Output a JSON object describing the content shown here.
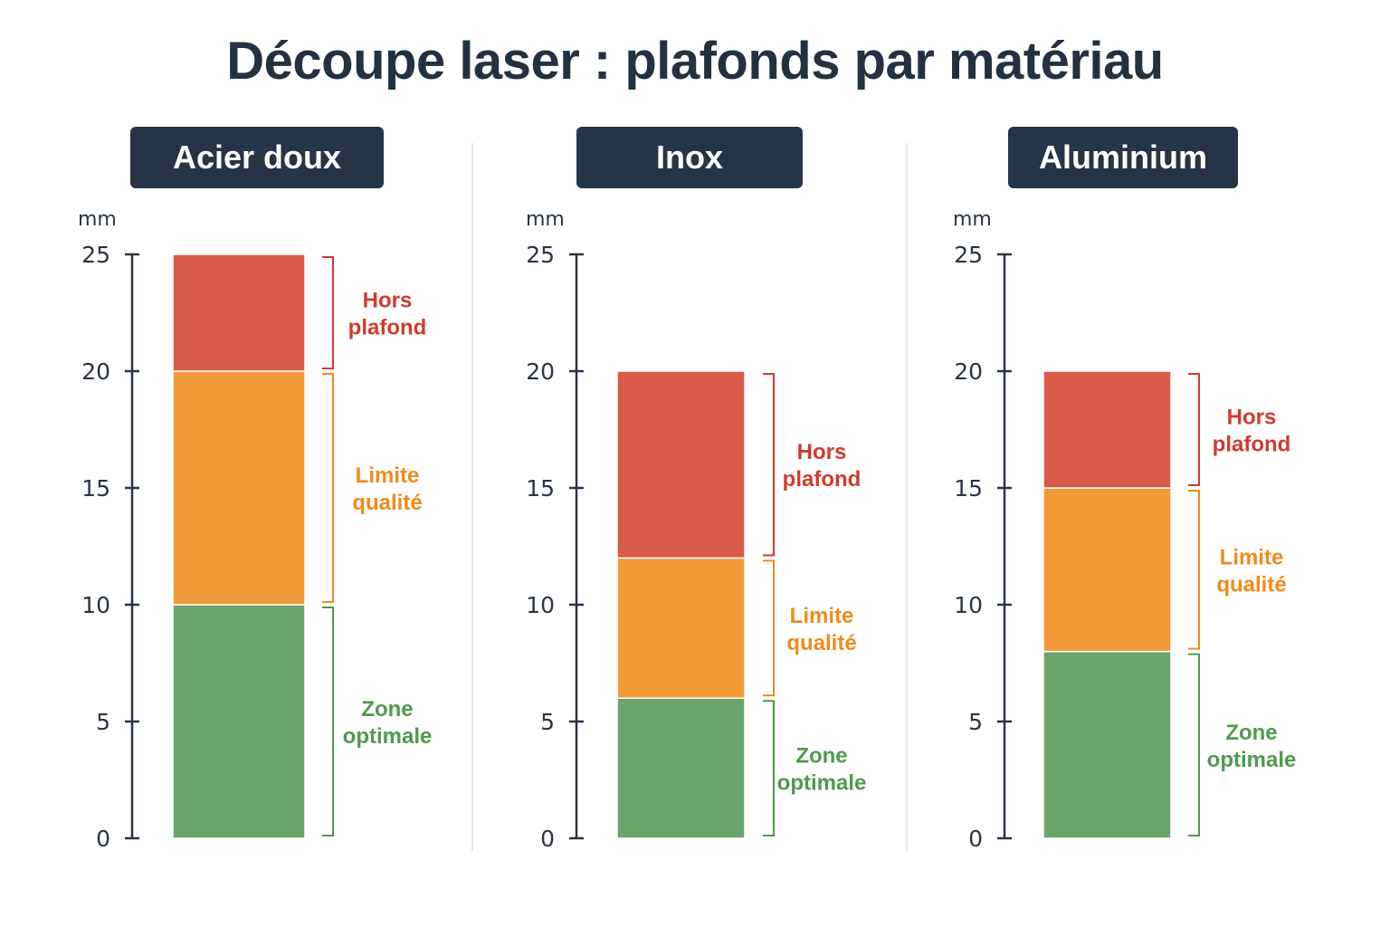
{
  "title": "Découpe laser : plafonds par matériau",
  "colors": {
    "green": "#6aa56c",
    "orange": "#f39a38",
    "red": "#d95a48",
    "green_text": "#4f9a4e",
    "orange_text": "#f08a1c",
    "red_text": "#d13a2e",
    "axis": "#2a3442",
    "header_bg": "#253446"
  },
  "chart_data": [
    {
      "type": "bar",
      "title": "Acier doux",
      "ylabel": "mm",
      "ylim": [
        0,
        25
      ],
      "yticks": [
        "0",
        "5",
        "10",
        "15",
        "20",
        "25"
      ],
      "stacked": true,
      "segments": [
        {
          "label": "Zone optimale",
          "lines": [
            "Zone",
            "optimale"
          ],
          "from": 0,
          "to": 10,
          "color": "green"
        },
        {
          "label": "Limite qualité",
          "lines": [
            "Limite",
            "qualité"
          ],
          "from": 10,
          "to": 20,
          "color": "orange"
        },
        {
          "label": "Hors plafond",
          "lines": [
            "Hors",
            "plafond"
          ],
          "from": 20,
          "to": 25,
          "color": "red"
        }
      ]
    },
    {
      "type": "bar",
      "title": "Inox",
      "ylabel": "mm",
      "ylim": [
        0,
        25
      ],
      "yticks": [
        "0",
        "5",
        "10",
        "15",
        "20",
        "25"
      ],
      "stacked": true,
      "segments": [
        {
          "label": "Zone optimale",
          "lines": [
            "Zone",
            "optimale"
          ],
          "from": 0,
          "to": 6,
          "color": "green"
        },
        {
          "label": "Limite qualité",
          "lines": [
            "Limite",
            "qualité"
          ],
          "from": 6,
          "to": 12,
          "color": "orange"
        },
        {
          "label": "Hors plafond",
          "lines": [
            "Hors",
            "plafond"
          ],
          "from": 12,
          "to": 20,
          "color": "red"
        }
      ]
    },
    {
      "type": "bar",
      "title": "Aluminium",
      "ylabel": "mm",
      "ylim": [
        0,
        25
      ],
      "yticks": [
        "0",
        "5",
        "10",
        "15",
        "20",
        "25"
      ],
      "stacked": true,
      "segments": [
        {
          "label": "Zone optimale",
          "lines": [
            "Zone",
            "optimale"
          ],
          "from": 0,
          "to": 8,
          "color": "green"
        },
        {
          "label": "Limite qualité",
          "lines": [
            "Limite",
            "qualité"
          ],
          "from": 8,
          "to": 15,
          "color": "orange"
        },
        {
          "label": "Hors plafond",
          "lines": [
            "Hors",
            "plafond"
          ],
          "from": 15,
          "to": 20,
          "color": "red"
        }
      ]
    }
  ]
}
